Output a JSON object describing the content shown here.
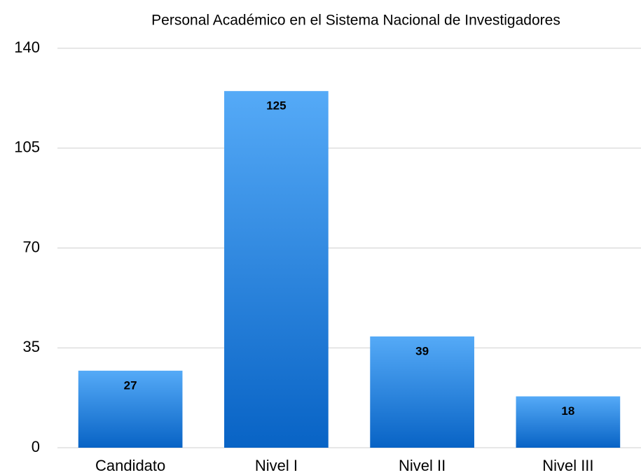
{
  "chart_data": {
    "type": "bar",
    "title": "Personal Académico en el Sistema Nacional de Investigadores",
    "categories": [
      "Candidato",
      "Nivel I",
      "Nivel II",
      "Nivel III"
    ],
    "values": [
      27,
      125,
      39,
      18
    ],
    "gradient": [
      "#55aaf7",
      "#0863c5"
    ],
    "ylim": [
      0,
      140
    ],
    "yticks": [
      0,
      35,
      70,
      105,
      140
    ],
    "grid": true
  }
}
